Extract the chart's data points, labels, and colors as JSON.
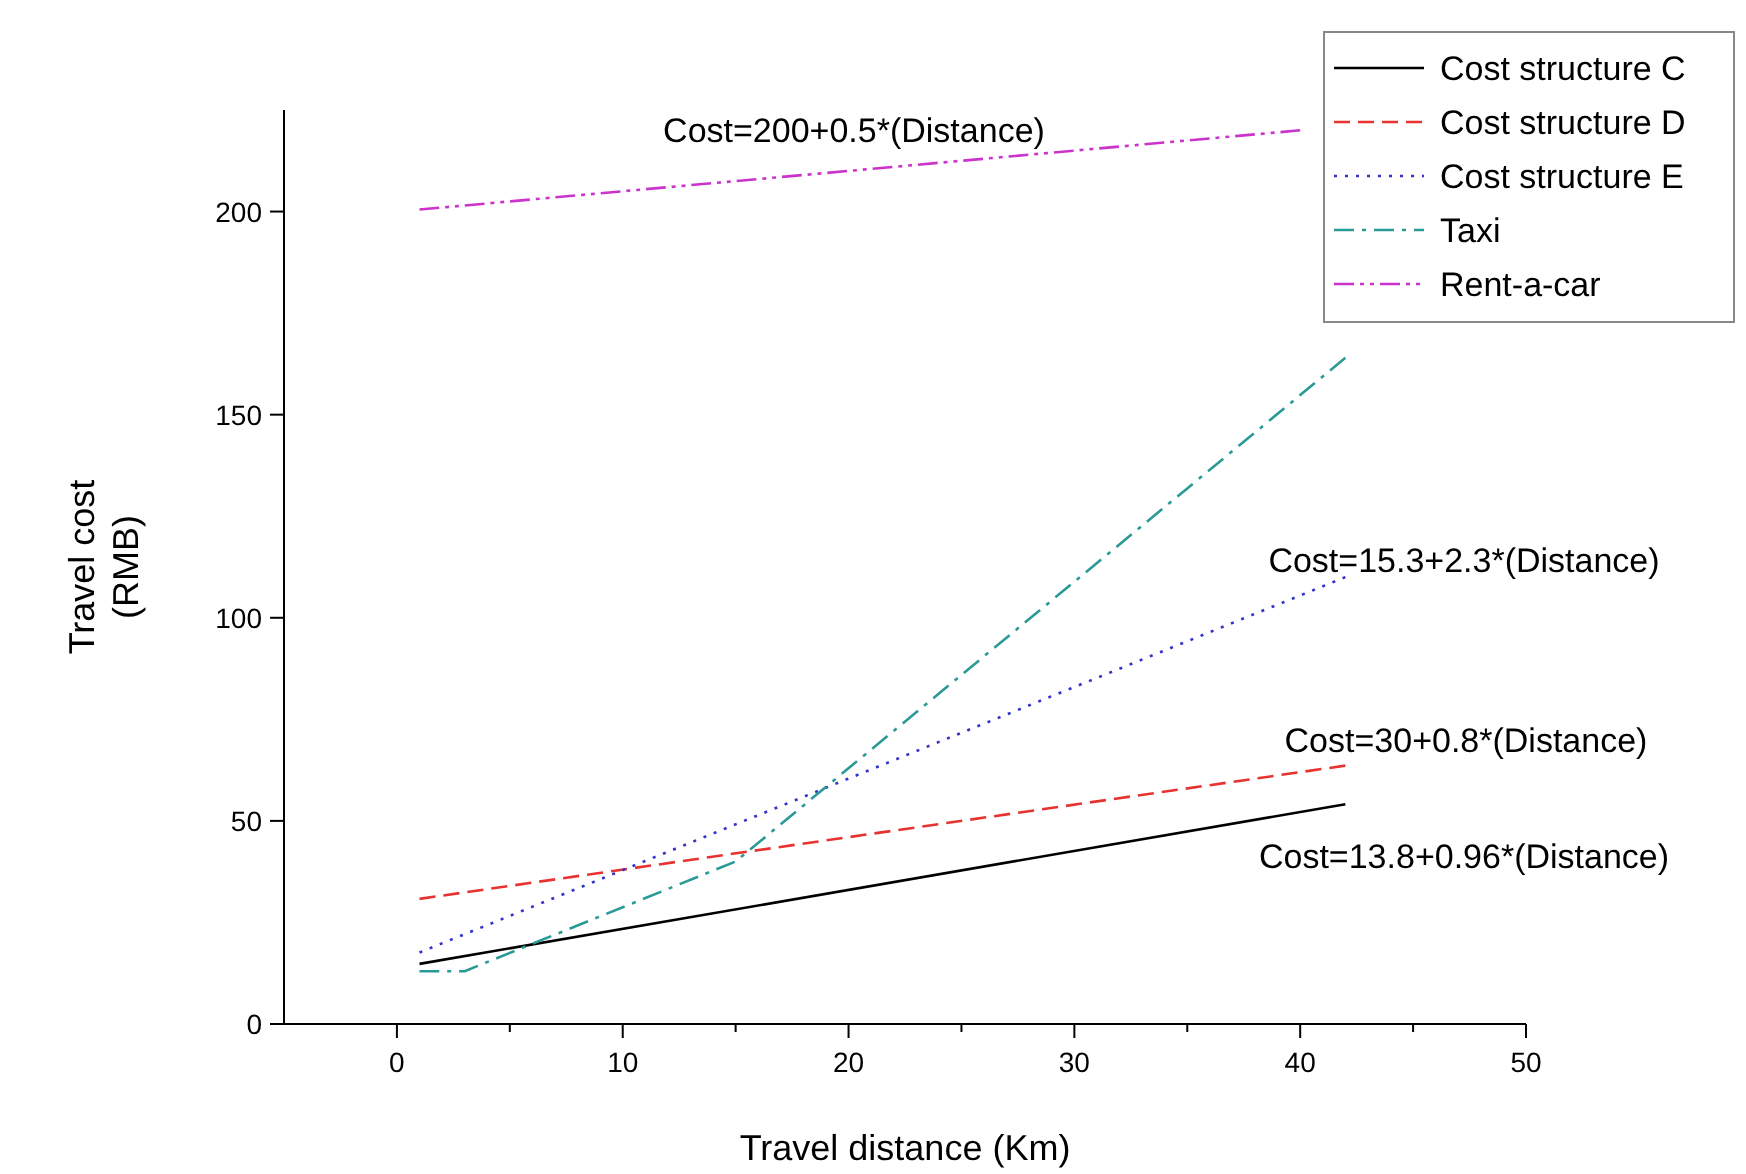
{
  "chart_data": {
    "type": "line",
    "xlabel": "Travel distance (Km)",
    "ylabel": "Travel cost\n(RMB)",
    "xlim": [
      -5,
      50
    ],
    "xticks": [
      0,
      {
        "value": 5,
        "label": null
      },
      10,
      {
        "value": 15,
        "label": null
      },
      20,
      {
        "value": 25,
        "label": null
      },
      30,
      {
        "value": 35,
        "label": null
      },
      40,
      {
        "value": 45,
        "label": null
      },
      50
    ],
    "ylim": [
      0,
      225
    ],
    "yticks": [
      0,
      50,
      100,
      150,
      200
    ],
    "grid": false,
    "legend": "top right",
    "marker": "none",
    "series": [
      {
        "name": "Cost structure C",
        "color": "#000000",
        "line_style": "solid",
        "x": [
          1,
          42
        ],
        "values": [
          14.8,
          54.1
        ]
      },
      {
        "name": "Cost structure D",
        "color": "#e8322f",
        "line_style": "dashed",
        "x": [
          1,
          42
        ],
        "values": [
          30.8,
          63.6
        ]
      },
      {
        "name": "Cost structure E",
        "color": "#3333cc",
        "line_style": "dotted",
        "x": [
          1,
          42
        ],
        "values": [
          17.6,
          110
        ]
      },
      {
        "name": "Taxi",
        "color": "#2a9a96",
        "line_style": "dashdot",
        "x": [
          1,
          3,
          15,
          42
        ],
        "values": [
          13,
          13,
          40,
          164
        ]
      },
      {
        "name": "Rent-a-car",
        "color": "#cc33cc",
        "line_style": "dashdotdot",
        "x": [
          1,
          40
        ],
        "values": [
          200.5,
          220
        ]
      }
    ],
    "annotations": [
      "Cost=200+0.5*(Distance)",
      "Cost=15.3+2.3*(Distance)",
      "Cost=30+0.8*(Distance)",
      "Cost=13.8+0.96*(Distance)"
    ]
  }
}
